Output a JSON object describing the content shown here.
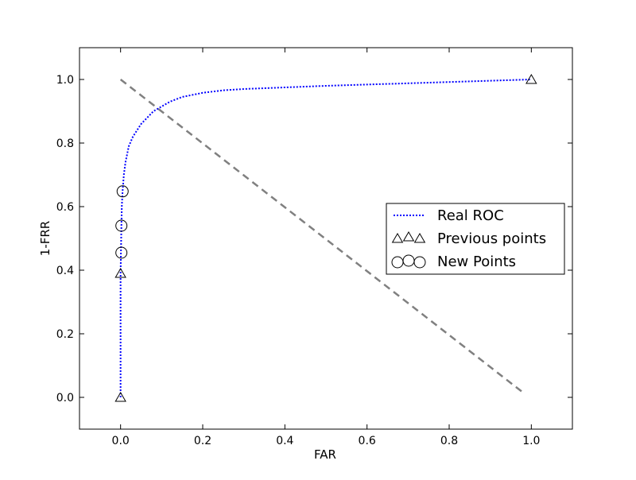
{
  "chart_data": {
    "type": "line",
    "xlabel": "FAR",
    "ylabel": "1-FRR",
    "xlim": [
      -0.1,
      1.1
    ],
    "ylim": [
      -0.1,
      1.1
    ],
    "x_ticks": [
      {
        "value": 0.0,
        "label": "0.0"
      },
      {
        "value": 0.2,
        "label": "0.2"
      },
      {
        "value": 0.4,
        "label": "0.4"
      },
      {
        "value": 0.6,
        "label": "0.6"
      },
      {
        "value": 0.8,
        "label": "0.8"
      },
      {
        "value": 1.0,
        "label": "1.0"
      }
    ],
    "y_ticks": [
      {
        "value": 0.0,
        "label": "0.0"
      },
      {
        "value": 0.2,
        "label": "0.2"
      },
      {
        "value": 0.4,
        "label": "0.4"
      },
      {
        "value": 0.6,
        "label": "0.6"
      },
      {
        "value": 0.8,
        "label": "0.8"
      },
      {
        "value": 1.0,
        "label": "1.0"
      }
    ],
    "grid": false,
    "legend_position": "center-right",
    "series": [
      {
        "name": "Real ROC",
        "style": "dotted",
        "color": "#0000ff",
        "x": [
          0.0,
          0.0,
          0.0,
          0.001,
          0.002,
          0.003,
          0.005,
          0.008,
          0.012,
          0.02,
          0.03,
          0.05,
          0.08,
          0.1,
          0.12,
          0.15,
          0.2,
          0.25,
          0.3,
          0.4,
          0.5,
          0.6,
          0.7,
          0.8,
          0.9,
          1.0
        ],
        "y": [
          0.0,
          0.2,
          0.39,
          0.46,
          0.54,
          0.6,
          0.65,
          0.7,
          0.74,
          0.79,
          0.82,
          0.86,
          0.9,
          0.915,
          0.93,
          0.945,
          0.958,
          0.966,
          0.97,
          0.975,
          0.98,
          0.984,
          0.988,
          0.992,
          0.996,
          1.0
        ]
      },
      {
        "name": "Previous points",
        "marker": "triangle",
        "color": "#000000",
        "x": [
          0.0,
          0.0,
          1.0
        ],
        "y": [
          0.0,
          0.39,
          1.0
        ]
      },
      {
        "name": "New Points",
        "marker": "circle",
        "color": "#000000",
        "x": [
          0.002,
          0.002,
          0.005
        ],
        "y": [
          0.455,
          0.54,
          0.648
        ]
      }
    ],
    "reference_line": {
      "style": "dashed",
      "color": "#808080",
      "x": [
        0.0,
        0.98
      ],
      "y": [
        1.0,
        0.015
      ]
    }
  }
}
